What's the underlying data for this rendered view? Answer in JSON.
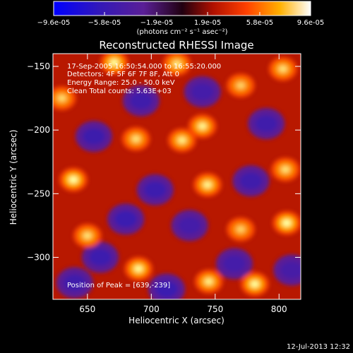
{
  "chart_data": {
    "type": "heatmap",
    "title": "Reconstructed RHESSI Image",
    "xlabel": "Heliocentric X (arcsec)",
    "ylabel": "Heliocentric Y (arcsec)",
    "xlim": [
      623,
      817
    ],
    "ylim": [
      -333,
      -140
    ],
    "x_ticks": [
      "650",
      "700",
      "750",
      "800"
    ],
    "x_tick_values": [
      650,
      700,
      750,
      800
    ],
    "y_ticks": [
      "-150",
      "-200",
      "-250",
      "-300"
    ],
    "y_tick_values": [
      -150,
      -200,
      -250,
      -300
    ],
    "colorbar": {
      "ticks": [
        "-9.6e-05",
        "-5.8e-05",
        "-1.9e-05",
        "1.9e-05",
        "5.8e-05",
        "9.6e-05"
      ],
      "tick_values": [
        -9.6e-05,
        -5.8e-05,
        -1.9e-05,
        1.9e-05,
        5.8e-05,
        9.6e-05
      ],
      "range": [
        -9.6e-05,
        9.6e-05
      ],
      "unit_label": "(photons cm⁻² s⁻¹ asec⁻²)",
      "colormap": "blue-purple-red-yellow-white"
    },
    "annotations": {
      "time": "17-Sep-2005 16:50:54.000 to 16:55:20.000",
      "detectors": "Detectors: 4F 5F 6F 7F 8F, Att 0",
      "energy": "Energy Range: 25.0 - 50.0 keV",
      "clean": "Clean     Total counts: 5.63E+03",
      "peak": "Position of Peak = [639,-239]"
    },
    "bright_sources": [
      {
        "x": 639,
        "y": -239,
        "level": 1.0
      },
      {
        "x": 671,
        "y": -147,
        "level": 0.95
      },
      {
        "x": 740,
        "y": -197,
        "level": 0.85
      },
      {
        "x": 724,
        "y": -208,
        "level": 0.8
      },
      {
        "x": 690,
        "y": -309,
        "level": 0.9
      },
      {
        "x": 781,
        "y": -321,
        "level": 0.95
      },
      {
        "x": 806,
        "y": -273,
        "level": 1.0
      },
      {
        "x": 744,
        "y": -243,
        "level": 0.85
      },
      {
        "x": 745,
        "y": -319,
        "level": 0.8
      },
      {
        "x": 688,
        "y": -207,
        "level": 0.7
      },
      {
        "x": 720,
        "y": -148,
        "level": 0.75
      },
      {
        "x": 803,
        "y": -152,
        "level": 0.7
      },
      {
        "x": 650,
        "y": -283,
        "level": 0.7
      },
      {
        "x": 770,
        "y": -278,
        "level": 0.6
      },
      {
        "x": 805,
        "y": -231,
        "level": 0.7
      },
      {
        "x": 630,
        "y": -175,
        "level": 0.65
      },
      {
        "x": 770,
        "y": -165,
        "level": 0.6
      }
    ],
    "dim_sources": [
      {
        "x": 680,
        "y": -270,
        "level": 1.0
      },
      {
        "x": 712,
        "y": -325,
        "level": 1.0
      },
      {
        "x": 703,
        "y": -247,
        "level": 0.9
      },
      {
        "x": 660,
        "y": -300,
        "level": 0.9
      },
      {
        "x": 790,
        "y": -195,
        "level": 0.8
      },
      {
        "x": 655,
        "y": -205,
        "level": 0.85
      },
      {
        "x": 740,
        "y": -170,
        "level": 0.7
      },
      {
        "x": 692,
        "y": -177,
        "level": 0.8
      },
      {
        "x": 765,
        "y": -305,
        "level": 0.7
      },
      {
        "x": 778,
        "y": -240,
        "level": 0.8
      },
      {
        "x": 640,
        "y": -320,
        "level": 0.8
      },
      {
        "x": 730,
        "y": -275,
        "level": 0.7
      },
      {
        "x": 810,
        "y": -310,
        "level": 0.6
      }
    ]
  },
  "footer": {
    "date": "12-Jul-2013 12:32"
  }
}
